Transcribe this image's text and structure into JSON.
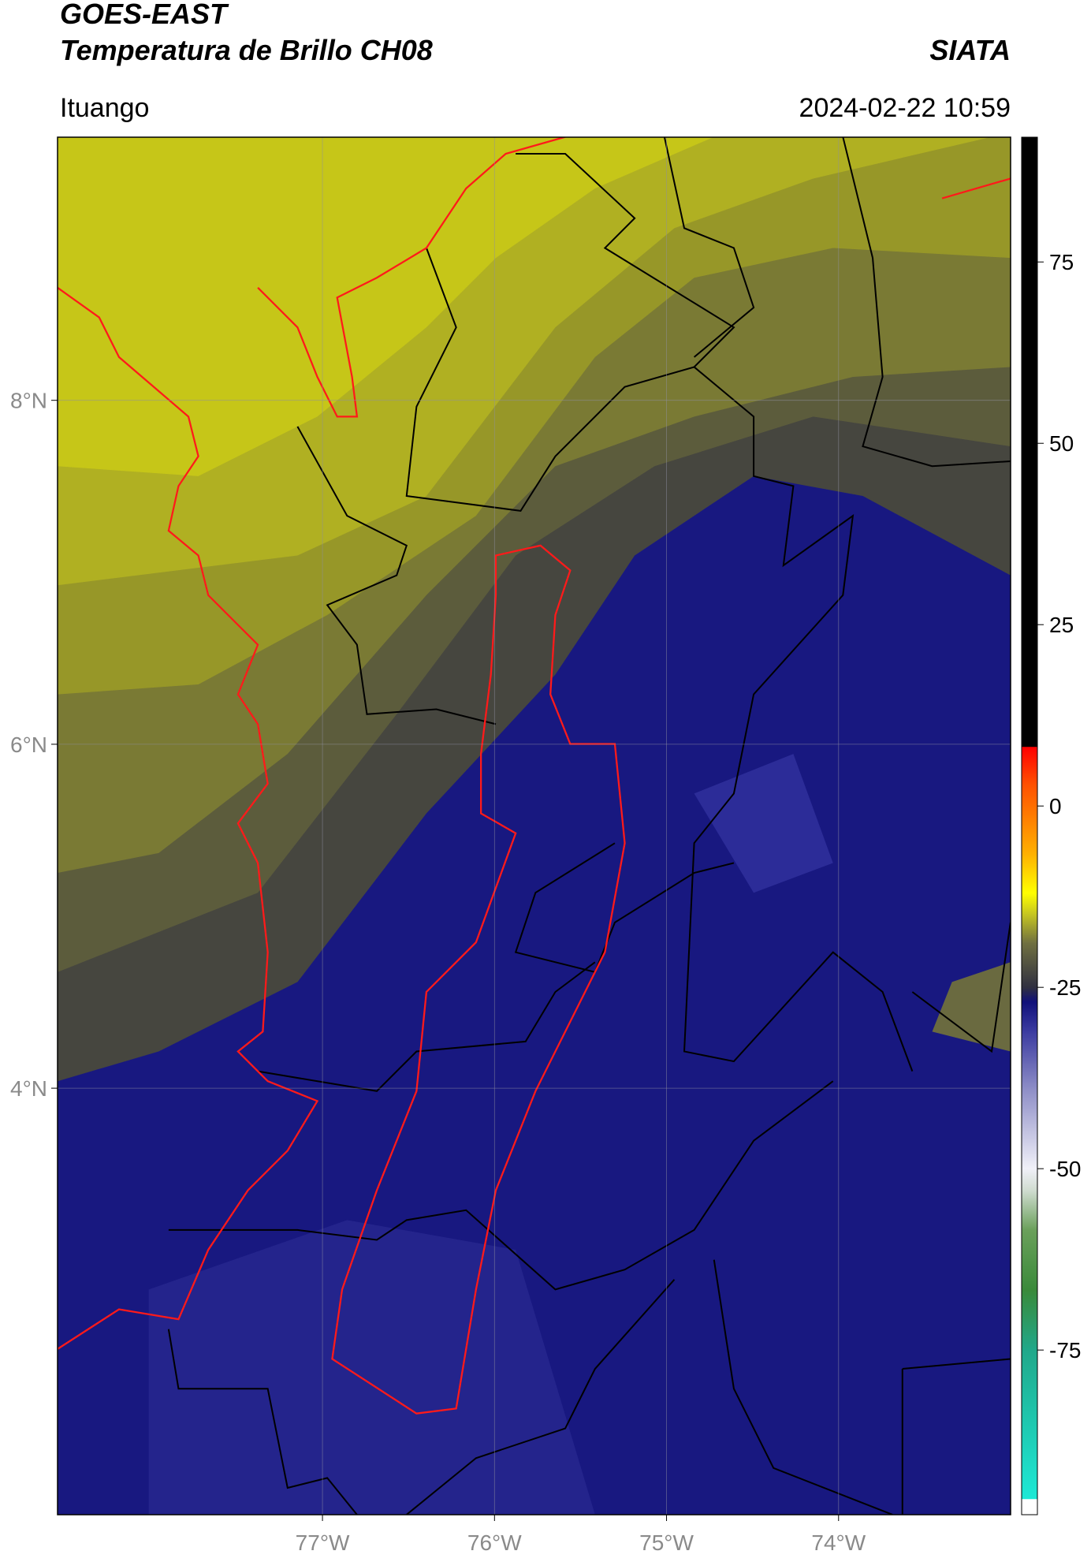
{
  "header": {
    "satellite": "GOES-EAST",
    "product": "Temperatura de Brillo CH08",
    "agency": "SIATA",
    "region": "Ituango",
    "datetime": "2024-02-22 10:59"
  },
  "map": {
    "xlim": [
      -78.54,
      -73.0
    ],
    "ylim": [
      1.52,
      9.53
    ],
    "grid": true,
    "xticks": [
      {
        "value": -77,
        "label": "77°W"
      },
      {
        "value": -76,
        "label": "76°W"
      },
      {
        "value": -75,
        "label": "75°W"
      },
      {
        "value": -74,
        "label": "74°W"
      }
    ],
    "yticks": [
      {
        "value": 8,
        "label": "8°N"
      },
      {
        "value": 6,
        "label": "6°N"
      },
      {
        "value": 4,
        "label": "4°N"
      }
    ]
  },
  "colorbar": {
    "lim": [
      -97.7,
      92.2
    ],
    "ticks": [
      75,
      50,
      25,
      0,
      -25,
      -50,
      -75
    ],
    "stops": [
      {
        "value": -97.7,
        "color": "#ffffff"
      },
      {
        "value": -95.6,
        "color": "#ffffff"
      },
      {
        "value": -95.5,
        "color": "#1de9d6"
      },
      {
        "value": -75,
        "color": "#20a88a"
      },
      {
        "value": -66.7,
        "color": "#3a8a3a"
      },
      {
        "value": -58.5,
        "color": "#6aa05a"
      },
      {
        "value": -53,
        "color": "#d0dcd0"
      },
      {
        "value": -50,
        "color": "#f0f0f8"
      },
      {
        "value": -39.3,
        "color": "#9090c8"
      },
      {
        "value": -31,
        "color": "#3a3aa0"
      },
      {
        "value": -27,
        "color": "#10107a"
      },
      {
        "value": -25,
        "color": "#303040"
      },
      {
        "value": -18.9,
        "color": "#707040"
      },
      {
        "value": -14.8,
        "color": "#c8c820"
      },
      {
        "value": -12,
        "color": "#ffff00"
      },
      {
        "value": -6.6,
        "color": "#ffb000"
      },
      {
        "value": 3,
        "color": "#ff5000"
      },
      {
        "value": 8.1,
        "color": "#ff0000"
      },
      {
        "value": 8.2,
        "color": "#000000"
      },
      {
        "value": 92.2,
        "color": "#000000"
      }
    ]
  }
}
